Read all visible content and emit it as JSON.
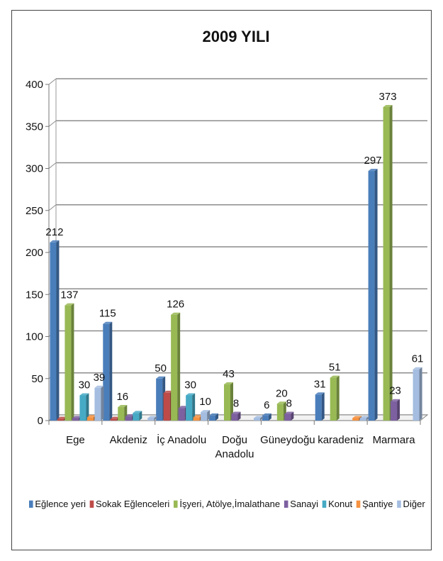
{
  "chart_data": {
    "type": "bar",
    "title": "2009 YILI",
    "xlabel": "",
    "ylabel": "",
    "ylim": [
      0,
      400
    ],
    "yticks": [
      0,
      50,
      100,
      150,
      200,
      250,
      300,
      350,
      400
    ],
    "grid": true,
    "legend_position": "bottom",
    "categories": [
      [
        "Ege"
      ],
      [
        "Akdeniz"
      ],
      [
        "İç Anadolu"
      ],
      [
        "Doğu",
        "Anadolu"
      ],
      [
        "Güneydoğu"
      ],
      [
        "karadeniz"
      ],
      [
        "Marmara"
      ]
    ],
    "series": [
      {
        "name": "Eğlence yeri",
        "color": "#4a7ebb",
        "values": [
          212,
          115,
          50,
          6,
          6,
          31,
          297
        ]
      },
      {
        "name": "Sokak Eğlenceleri",
        "color": "#be4b48",
        "values": [
          2,
          2,
          33,
          0,
          0,
          0,
          0
        ]
      },
      {
        "name": "İşyeri, Atölye,İmalathane",
        "color": "#98b954",
        "values": [
          137,
          16,
          126,
          43,
          20,
          51,
          373
        ]
      },
      {
        "name": "Sanayi",
        "color": "#7d60a0",
        "values": [
          3,
          5,
          15,
          8,
          8,
          0,
          23
        ]
      },
      {
        "name": "Konut",
        "color": "#46aac5",
        "values": [
          30,
          9,
          30,
          0,
          0,
          0,
          0
        ]
      },
      {
        "name": "Şantiye",
        "color": "#f69240",
        "values": [
          4,
          0,
          4,
          0,
          0,
          3,
          0
        ]
      },
      {
        "name": "Diğer",
        "color": "#a4bde0",
        "values": [
          39,
          3,
          10,
          3,
          0,
          3,
          61
        ]
      }
    ],
    "data_labels": [
      {
        "category": 0,
        "series": 0,
        "text": "212"
      },
      {
        "category": 0,
        "series": 2,
        "text": "137"
      },
      {
        "category": 0,
        "series": 4,
        "text": "30"
      },
      {
        "category": 0,
        "series": 6,
        "text": "39"
      },
      {
        "category": 1,
        "series": 0,
        "text": "115"
      },
      {
        "category": 1,
        "series": 2,
        "text": "16"
      },
      {
        "category": 2,
        "series": 0,
        "text": "50"
      },
      {
        "category": 2,
        "series": 2,
        "text": "126"
      },
      {
        "category": 2,
        "series": 4,
        "text": "30"
      },
      {
        "category": 2,
        "series": 6,
        "text": "10"
      },
      {
        "category": 3,
        "series": 2,
        "text": "43"
      },
      {
        "category": 3,
        "series": 3,
        "text": "8"
      },
      {
        "category": 4,
        "series": 0,
        "text": "6"
      },
      {
        "category": 4,
        "series": 2,
        "text": "20"
      },
      {
        "category": 4,
        "series": 3,
        "text": "8"
      },
      {
        "category": 5,
        "series": 0,
        "text": "31"
      },
      {
        "category": 5,
        "series": 2,
        "text": "51"
      },
      {
        "category": 6,
        "series": 0,
        "text": "297"
      },
      {
        "category": 6,
        "series": 2,
        "text": "373"
      },
      {
        "category": 6,
        "series": 3,
        "text": "23"
      },
      {
        "category": 6,
        "series": 6,
        "text": "61"
      }
    ]
  }
}
